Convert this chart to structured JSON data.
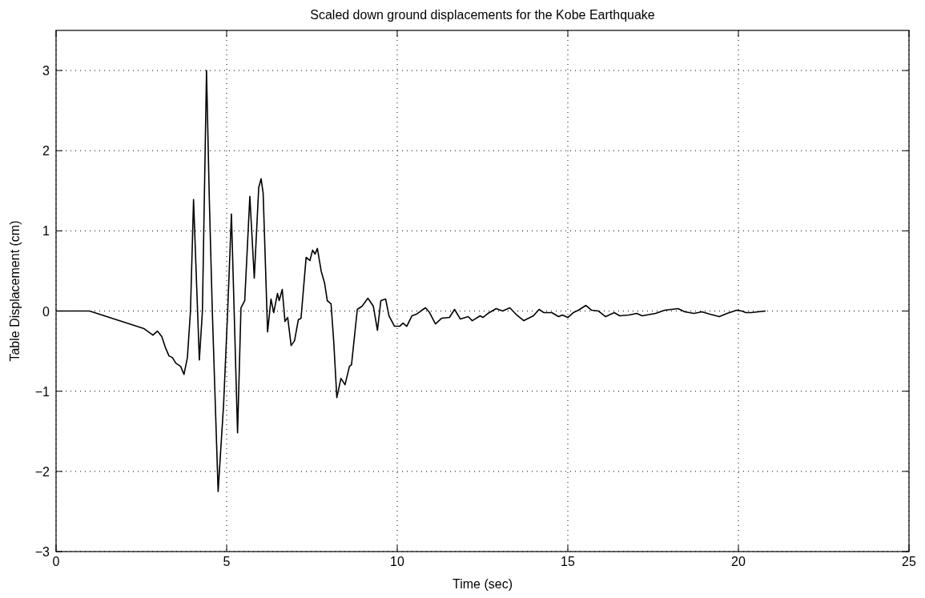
{
  "chart_data": {
    "type": "line",
    "title": "Scaled down ground displacements for the Kobe Earthquake",
    "xlabel": "Time (sec)",
    "ylabel": "Table Displacement (cm)",
    "xlim": [
      0,
      25
    ],
    "xticks": [
      0,
      5,
      10,
      15,
      20,
      25
    ],
    "ylim": [
      -3,
      3.5
    ],
    "yticks": [
      -3,
      -2,
      -1,
      0,
      1,
      2,
      3
    ],
    "grid": true,
    "line_style": "solid",
    "series": [
      {
        "color": "#000000",
        "x": [
          0,
          0.98,
          2.58,
          2.84,
          2.97,
          3.1,
          3.2,
          3.31,
          3.41,
          3.51,
          3.65,
          3.75,
          3.85,
          3.94,
          4.03,
          4.1,
          4.2,
          4.29,
          4.41,
          4.49,
          4.58,
          4.75,
          4.91,
          5.03,
          5.14,
          5.22,
          5.32,
          5.42,
          5.53,
          5.68,
          5.81,
          5.94,
          6.01,
          6.07,
          6.2,
          6.3,
          6.38,
          6.49,
          6.54,
          6.63,
          6.71,
          6.79,
          6.89,
          6.99,
          7.1,
          7.18,
          7.33,
          7.44,
          7.52,
          7.59,
          7.66,
          7.77,
          7.87,
          7.95,
          8.06,
          8.14,
          8.23,
          8.35,
          8.47,
          8.6,
          8.66,
          8.83,
          8.97,
          9.14,
          9.3,
          9.42,
          9.52,
          9.66,
          9.76,
          9.92,
          10.07,
          10.17,
          10.28,
          10.43,
          10.56,
          10.72,
          10.83,
          10.95,
          11.12,
          11.3,
          11.53,
          11.68,
          11.85,
          12.08,
          12.2,
          12.43,
          12.51,
          12.66,
          12.9,
          13.09,
          13.3,
          13.48,
          13.71,
          13.99,
          14.16,
          14.3,
          14.53,
          14.73,
          14.84,
          15,
          15.16,
          15.31,
          15.53,
          15.7,
          15.9,
          16.11,
          16.36,
          16.52,
          16.79,
          17.02,
          17.18,
          17.57,
          17.84,
          18.23,
          18.43,
          18.7,
          18.93,
          19.17,
          19.44,
          19.67,
          19.95,
          20.1,
          20.22,
          20.37,
          20.8
        ],
        "values": [
          0,
          0,
          -0.22,
          -0.3,
          -0.25,
          -0.32,
          -0.45,
          -0.56,
          -0.58,
          -0.65,
          -0.69,
          -0.79,
          -0.58,
          0,
          1.39,
          0.56,
          -0.61,
          0,
          3.0,
          1.43,
          0,
          -2.25,
          -1.17,
          0,
          1.21,
          0,
          -1.52,
          0.04,
          0.13,
          1.43,
          0.41,
          1.54,
          1.65,
          1.47,
          -0.26,
          0.15,
          -0.02,
          0.22,
          0.13,
          0.27,
          -0.13,
          -0.08,
          -0.43,
          -0.37,
          -0.11,
          -0.09,
          0.67,
          0.63,
          0.76,
          0.71,
          0.78,
          0.5,
          0.35,
          0.13,
          0.09,
          -0.39,
          -1.08,
          -0.84,
          -0.92,
          -0.69,
          -0.67,
          0.02,
          0.06,
          0.16,
          0.06,
          -0.24,
          0.13,
          0.15,
          -0.06,
          -0.19,
          -0.19,
          -0.15,
          -0.19,
          -0.06,
          -0.04,
          0.01,
          0.04,
          -0.02,
          -0.16,
          -0.09,
          -0.08,
          0.02,
          -0.1,
          -0.07,
          -0.12,
          -0.06,
          -0.08,
          -0.03,
          0.03,
          0,
          0.04,
          -0.04,
          -0.12,
          -0.06,
          0.02,
          -0.02,
          -0.02,
          -0.07,
          -0.05,
          -0.08,
          -0.02,
          0.01,
          0.07,
          0.01,
          0,
          -0.07,
          -0.02,
          -0.06,
          -0.05,
          -0.03,
          -0.06,
          -0.03,
          0.01,
          0.03,
          -0.01,
          -0.03,
          -0.01,
          -0.04,
          -0.07,
          -0.03,
          0.01,
          0,
          -0.02,
          -0.02,
          0
        ]
      }
    ]
  }
}
